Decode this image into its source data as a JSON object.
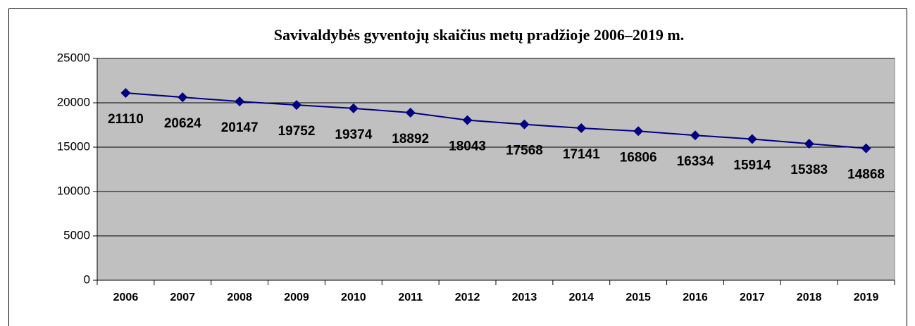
{
  "chart_data": {
    "type": "line",
    "title": "Savivaldybės gyventojų skaičius metų pradžioje 2006–2019 m.",
    "categories": [
      "2006",
      "2007",
      "2008",
      "2009",
      "2010",
      "2011",
      "2012",
      "2013",
      "2014",
      "2015",
      "2016",
      "2017",
      "2018",
      "2019"
    ],
    "values": [
      21110,
      20624,
      20147,
      19752,
      19374,
      18892,
      18043,
      17568,
      17141,
      16806,
      16334,
      15914,
      15383,
      14868
    ],
    "color": "#000080",
    "ylim": [
      0,
      25000
    ],
    "yticks": [
      0,
      5000,
      10000,
      15000,
      20000,
      25000
    ],
    "grid": true
  }
}
